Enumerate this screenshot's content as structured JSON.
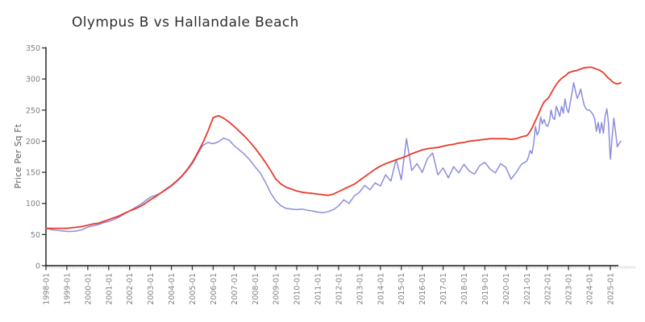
{
  "title": "Olympus B vs Hallandale Beach",
  "y_axis": {
    "label": "Price Per Sq Ft",
    "ticks": [
      0,
      50,
      100,
      150,
      200,
      250,
      300,
      350
    ],
    "min": 0,
    "max": 350
  },
  "x_axis": {
    "tick_labels": [
      "1998-01",
      "1999-01",
      "2000-01",
      "2001-01",
      "2002-01",
      "2003-01",
      "2004-01",
      "2005-01",
      "2006-01",
      "2007-01",
      "2008-01",
      "2009-01",
      "2010-01",
      "2011-01",
      "2012-01",
      "2013-01",
      "2014-01",
      "2015-01",
      "2016-01",
      "2017-01",
      "2018-01",
      "2019-01",
      "2020-01",
      "2021-01",
      "2022-01",
      "2023-01",
      "2024-01",
      "2025-01"
    ],
    "minor_tick_interval": "monthly"
  },
  "colors": {
    "series_red": "#e93a2b",
    "series_blue": "#8b8dde",
    "spine": "#1a1a1a",
    "major_tick": "#333333",
    "minor_tick": "#c9c9c9",
    "tick_label": "#808080",
    "title_text": "#2e2e2e",
    "axis_label_text": "#5a5a5a"
  },
  "chart_data": {
    "type": "line",
    "title": "Olympus B vs Hallandale Beach",
    "xlabel": "",
    "ylabel": "Price Per Sq Ft",
    "ylim": [
      0,
      350
    ],
    "x_unit": "months since 1998-01",
    "x_range_labels": [
      "1998-01",
      "2025-07"
    ],
    "grid": false,
    "legend": "none",
    "x": [
      0,
      3,
      6,
      9,
      12,
      15,
      18,
      21,
      24,
      27,
      30,
      33,
      36,
      39,
      42,
      45,
      48,
      51,
      54,
      57,
      60,
      63,
      66,
      69,
      72,
      75,
      78,
      81,
      84,
      87,
      90,
      93,
      96,
      99,
      102,
      105,
      108,
      111,
      114,
      117,
      120,
      123,
      126,
      129,
      132,
      135,
      138,
      141,
      144,
      147,
      150,
      153,
      156,
      159,
      162,
      165,
      168,
      171,
      174,
      177,
      180,
      183,
      186,
      189,
      192,
      195,
      198,
      201,
      204,
      207,
      210,
      213,
      216,
      219,
      222,
      225,
      228,
      231,
      234,
      237,
      240,
      243,
      246,
      249,
      252,
      255,
      258,
      261,
      264,
      267,
      270,
      273,
      276,
      277,
      278,
      279,
      280,
      281,
      282,
      283,
      284,
      285,
      286,
      287,
      288,
      289,
      290,
      291,
      292,
      293,
      294,
      295,
      296,
      297,
      298,
      299,
      300,
      301,
      302,
      303,
      304,
      305,
      306,
      307,
      308,
      309,
      310,
      311,
      312,
      313,
      314,
      315,
      316,
      317,
      318,
      319,
      320,
      321,
      322,
      323,
      324,
      325,
      326,
      327,
      328,
      329,
      330
    ],
    "series": [
      {
        "name": "red-line",
        "color": "#e93a2b",
        "values": [
          60,
          60,
          60,
          60,
          60,
          61,
          62,
          63,
          65,
          67,
          68,
          71,
          74,
          77,
          80,
          84,
          88,
          91,
          95,
          100,
          106,
          111,
          117,
          123,
          129,
          136,
          144,
          154,
          166,
          181,
          197,
          216,
          238,
          241,
          237,
          231,
          224,
          216,
          208,
          199,
          189,
          178,
          166,
          153,
          139,
          131,
          126,
          123,
          120,
          118,
          117,
          116,
          115,
          114,
          113,
          115,
          119,
          123,
          127,
          131,
          137,
          143,
          149,
          155,
          160,
          164,
          167,
          170,
          173,
          176,
          180,
          183,
          186,
          188,
          189,
          190,
          192,
          194,
          195,
          197,
          198,
          200,
          201,
          202,
          203,
          204,
          204,
          204,
          204,
          203,
          204,
          207,
          209,
          212,
          216,
          221,
          227,
          233,
          239,
          245,
          252,
          258,
          263,
          266,
          268,
          272,
          277,
          282,
          287,
          291,
          295,
          298,
          301,
          303,
          305,
          307,
          310,
          311,
          312,
          313,
          313,
          314,
          315,
          316,
          317,
          318,
          318,
          319,
          319,
          319,
          318,
          317,
          316,
          315,
          314,
          312,
          310,
          307,
          304,
          301,
          299,
          296,
          294,
          293,
          292,
          293,
          294
        ]
      },
      {
        "name": "blue-line",
        "color": "#8b8dde",
        "values": [
          60,
          58,
          57,
          56,
          55,
          55,
          56,
          58,
          62,
          64,
          66,
          69,
          71,
          74,
          78,
          83,
          88,
          93,
          98,
          104,
          110,
          113,
          117,
          122,
          128,
          135,
          143,
          153,
          164,
          179,
          193,
          198,
          196,
          199,
          205,
          202,
          193,
          186,
          179,
          170,
          159,
          149,
          134,
          117,
          104,
          96,
          92,
          91,
          90,
          91,
          89,
          88,
          86,
          85,
          87,
          90,
          96,
          106,
          100,
          112,
          118,
          129,
          122,
          133,
          128,
          146,
          136,
          171,
          138,
          204,
          153,
          164,
          150,
          172,
          181,
          146,
          157,
          141,
          159,
          149,
          163,
          152,
          147,
          161,
          166,
          155,
          149,
          164,
          158,
          139,
          150,
          163,
          168,
          175,
          185,
          180,
          196,
          224,
          210,
          216,
          239,
          228,
          235,
          226,
          224,
          232,
          250,
          238,
          235,
          256,
          248,
          240,
          256,
          245,
          268,
          252,
          246,
          262,
          278,
          294,
          280,
          269,
          275,
          284,
          270,
          258,
          252,
          250,
          250,
          247,
          243,
          236,
          216,
          230,
          213,
          230,
          213,
          240,
          252,
          228,
          171,
          205,
          237,
          215,
          191,
          196,
          200
        ]
      }
    ]
  }
}
